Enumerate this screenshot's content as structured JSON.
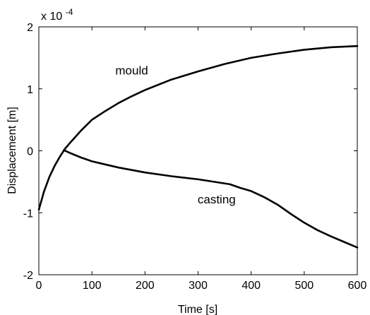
{
  "chart_data": {
    "type": "line",
    "xlabel": "Time [s]",
    "ylabel": "Displacement [m]",
    "y_multiplier": "x 10",
    "y_multiplier_exponent": "-4",
    "xlim": [
      0,
      600
    ],
    "ylim": [
      -2,
      2
    ],
    "xticks": [
      0,
      100,
      200,
      300,
      400,
      500,
      600
    ],
    "xtick_labels": [
      "0",
      "100",
      "200",
      "300",
      "400",
      "500",
      "600"
    ],
    "yticks": [
      -2,
      -1,
      0,
      1,
      2
    ],
    "ytick_labels": [
      "-2",
      "-1",
      "0",
      "1",
      "2"
    ],
    "grid": false,
    "legend": "none",
    "line_color": "#000000",
    "annotations": [
      {
        "text": "mould",
        "x": 175,
        "y": 1.3
      },
      {
        "text": "casting",
        "x": 335,
        "y": -0.78
      }
    ],
    "series": [
      {
        "x": [
          0,
          10,
          20,
          30,
          40,
          50,
          60,
          80,
          100,
          125,
          150,
          175,
          200,
          250,
          300,
          350,
          400,
          450,
          500,
          550,
          600
        ],
        "y": [
          -0.95,
          -0.65,
          -0.42,
          -0.24,
          -0.09,
          0.04,
          0.14,
          0.33,
          0.5,
          0.64,
          0.77,
          0.88,
          0.98,
          1.15,
          1.28,
          1.4,
          1.5,
          1.57,
          1.63,
          1.67,
          1.69
        ]
      },
      {
        "x": [
          47,
          60,
          80,
          100,
          125,
          150,
          175,
          200,
          250,
          300,
          330,
          360,
          380,
          400,
          425,
          450,
          475,
          500,
          525,
          550,
          575,
          600
        ],
        "y": [
          0.01,
          -0.04,
          -0.11,
          -0.17,
          -0.22,
          -0.27,
          -0.31,
          -0.35,
          -0.41,
          -0.46,
          -0.5,
          -0.54,
          -0.6,
          -0.65,
          -0.75,
          -0.87,
          -1.02,
          -1.16,
          -1.28,
          -1.38,
          -1.47,
          -1.56
        ]
      }
    ]
  }
}
